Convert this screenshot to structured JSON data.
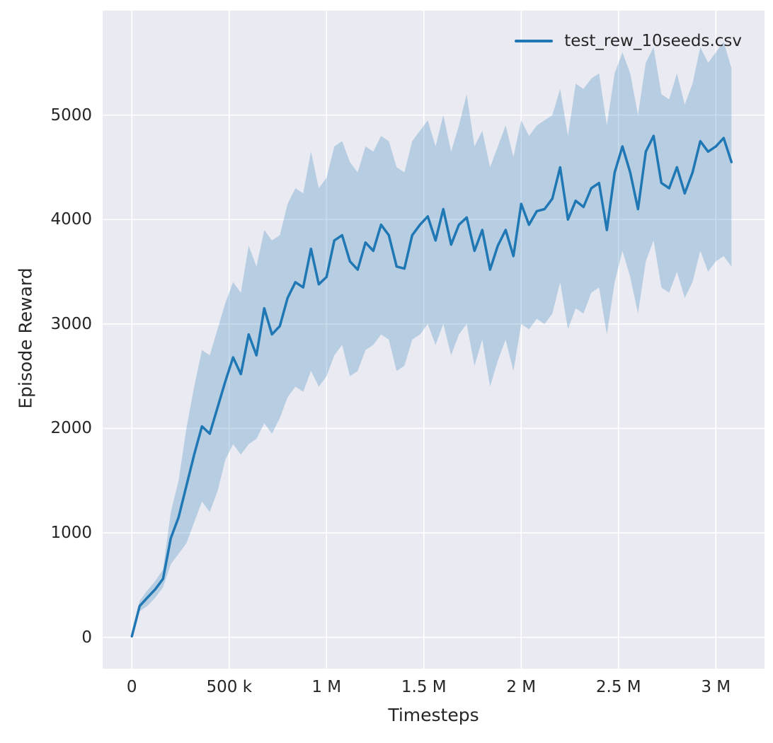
{
  "colors": {
    "page_bg": "#ffffff",
    "plot_bg": "#eaeaf2",
    "grid": "#ffffff",
    "text": "#262626",
    "line": "#1f77b4",
    "band_fill": "rgba(31,119,180,0.25)"
  },
  "chart_data": {
    "type": "line",
    "title": "",
    "xlabel": "Timesteps",
    "ylabel": "Episode Reward",
    "grid": true,
    "legend_position": "upper right",
    "xlim": [
      -150000,
      3250000
    ],
    "ylim": [
      -300,
      6000
    ],
    "xticks": {
      "values": [
        0,
        500000,
        1000000,
        1500000,
        2000000,
        2500000,
        3000000
      ],
      "labels": [
        "0",
        "500 k",
        "1 M",
        "1.5 M",
        "2 M",
        "2.5 M",
        "3 M"
      ]
    },
    "yticks": {
      "values": [
        0,
        1000,
        2000,
        3000,
        4000,
        5000
      ],
      "labels": [
        "0",
        "1000",
        "2000",
        "3000",
        "4000",
        "5000"
      ]
    },
    "x_scale": 1000,
    "series": [
      {
        "name": "test_rew_10seeds.csv",
        "color": "#1f77b4",
        "band_fill": "rgba(31,119,180,0.25)",
        "x": [
          0,
          40,
          80,
          120,
          160,
          200,
          240,
          280,
          320,
          360,
          400,
          440,
          480,
          520,
          560,
          600,
          640,
          680,
          720,
          760,
          800,
          840,
          880,
          920,
          960,
          1000,
          1040,
          1080,
          1120,
          1160,
          1200,
          1240,
          1280,
          1320,
          1360,
          1400,
          1440,
          1480,
          1520,
          1560,
          1600,
          1640,
          1680,
          1720,
          1760,
          1800,
          1840,
          1880,
          1920,
          1960,
          2000,
          2040,
          2080,
          2120,
          2160,
          2200,
          2240,
          2280,
          2320,
          2360,
          2400,
          2440,
          2480,
          2520,
          2560,
          2600,
          2640,
          2680,
          2720,
          2760,
          2800,
          2840,
          2880,
          2920,
          2960,
          3000,
          3040,
          3080
        ],
        "mean": [
          10,
          300,
          380,
          460,
          560,
          950,
          1150,
          1450,
          1750,
          2020,
          1950,
          2200,
          2450,
          2680,
          2520,
          2900,
          2700,
          3150,
          2900,
          2980,
          3250,
          3400,
          3350,
          3720,
          3380,
          3450,
          3800,
          3850,
          3600,
          3520,
          3780,
          3700,
          3950,
          3850,
          3550,
          3530,
          3850,
          3950,
          4030,
          3800,
          4100,
          3760,
          3950,
          4020,
          3700,
          3900,
          3520,
          3750,
          3900,
          3650,
          4150,
          3950,
          4080,
          4100,
          4200,
          4500,
          4000,
          4180,
          4120,
          4300,
          4350,
          3900,
          4450,
          4700,
          4450,
          4100,
          4650,
          4800,
          4350,
          4300,
          4500,
          4250,
          4450,
          4750,
          4650,
          4700,
          4780,
          4550
        ],
        "lower": [
          0,
          250,
          300,
          380,
          480,
          700,
          800,
          900,
          1100,
          1300,
          1200,
          1400,
          1700,
          1850,
          1750,
          1850,
          1900,
          2050,
          1950,
          2100,
          2300,
          2400,
          2350,
          2550,
          2400,
          2500,
          2700,
          2800,
          2500,
          2550,
          2750,
          2800,
          2900,
          2850,
          2550,
          2600,
          2850,
          2900,
          3000,
          2800,
          3000,
          2700,
          2900,
          3000,
          2600,
          2850,
          2400,
          2650,
          2850,
          2550,
          3000,
          2950,
          3050,
          3000,
          3100,
          3400,
          2950,
          3150,
          3100,
          3300,
          3350,
          2900,
          3400,
          3700,
          3450,
          3100,
          3600,
          3800,
          3350,
          3300,
          3500,
          3250,
          3400,
          3700,
          3500,
          3600,
          3650,
          3550
        ],
        "upper": [
          30,
          350,
          450,
          540,
          650,
          1200,
          1500,
          2000,
          2400,
          2750,
          2700,
          2950,
          3200,
          3400,
          3300,
          3750,
          3550,
          3900,
          3800,
          3850,
          4150,
          4300,
          4250,
          4650,
          4300,
          4400,
          4700,
          4750,
          4550,
          4450,
          4700,
          4650,
          4800,
          4750,
          4500,
          4450,
          4750,
          4850,
          4950,
          4700,
          5000,
          4650,
          4900,
          5200,
          4700,
          4850,
          4500,
          4700,
          4900,
          4600,
          4950,
          4800,
          4900,
          4950,
          5000,
          5250,
          4800,
          5300,
          5250,
          5350,
          5400,
          4900,
          5400,
          5600,
          5400,
          5000,
          5500,
          5650,
          5200,
          5150,
          5400,
          5100,
          5300,
          5650,
          5500,
          5600,
          5700,
          5450
        ]
      }
    ]
  }
}
